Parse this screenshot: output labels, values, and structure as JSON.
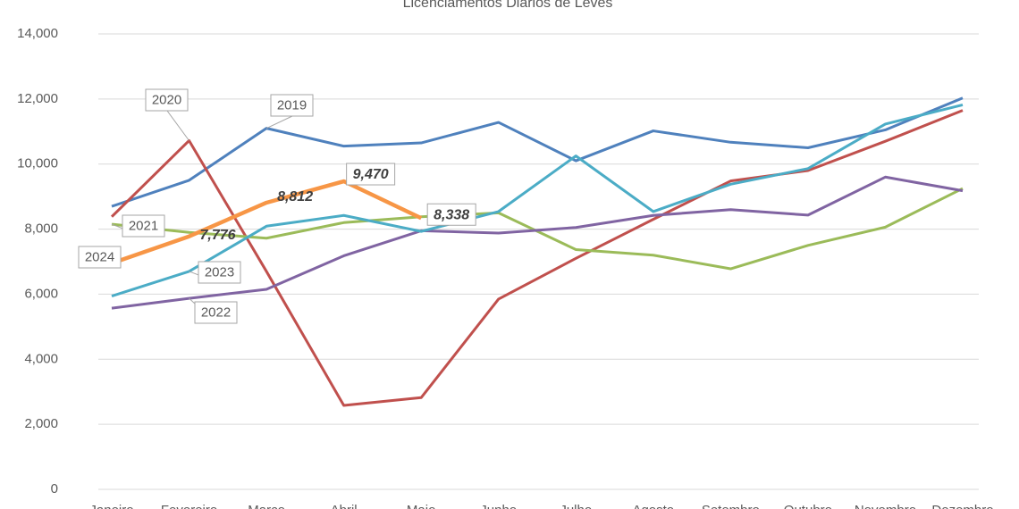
{
  "chart_data": {
    "type": "line",
    "title": "Licenciamentos Diários de Leves",
    "categories": [
      "Janeiro",
      "Fevereiro",
      "Março",
      "Abril",
      "Maio",
      "Junho",
      "Julho",
      "Agosto",
      "Setembro",
      "Outubro",
      "Novembro",
      "Dezembro"
    ],
    "series": [
      {
        "name": "2019",
        "color": "#4f81bd",
        "values": [
          8700,
          9500,
          11100,
          10550,
          10650,
          11280,
          10100,
          11020,
          10670,
          10500,
          11050,
          12030
        ]
      },
      {
        "name": "2020",
        "color": "#c0504d",
        "values": [
          8380,
          10720,
          6700,
          2580,
          2820,
          5850,
          7100,
          8300,
          9480,
          9800,
          10700,
          11650
        ]
      },
      {
        "name": "2021",
        "color": "#9bbb59",
        "values": [
          8150,
          7900,
          7720,
          8200,
          8380,
          8500,
          7370,
          7200,
          6780,
          7500,
          8060,
          9250
        ]
      },
      {
        "name": "2022",
        "color": "#8064a2",
        "values": [
          5570,
          5870,
          6150,
          7180,
          7950,
          7880,
          8050,
          8420,
          8600,
          8430,
          9600,
          9180
        ]
      },
      {
        "name": "2023",
        "color": "#4bacc6",
        "values": [
          5940,
          6700,
          8090,
          8420,
          7930,
          8540,
          10250,
          8540,
          9380,
          9860,
          11230,
          11820
        ]
      },
      {
        "name": "2024",
        "color": "#f79646",
        "values": [
          6950,
          7776,
          8812,
          9470,
          8338,
          null,
          null,
          null,
          null,
          null,
          null,
          null
        ],
        "value_labels": [
          null,
          "7,776",
          "8,812",
          "9,470",
          "8,338",
          null,
          null,
          null,
          null,
          null,
          null,
          null
        ]
      }
    ],
    "ylim": [
      0,
      14000
    ],
    "yticks": [
      0,
      {
        "value": 2000,
        "label": "2,000"
      },
      {
        "value": 4000,
        "label": "4,000"
      },
      {
        "value": 6000,
        "label": "6,000"
      },
      {
        "value": 8000,
        "label": "8,000"
      },
      {
        "value": 10000,
        "label": "10,000"
      },
      {
        "value": 12000,
        "label": "12,000"
      },
      {
        "value": 14000,
        "label": "14,000"
      }
    ],
    "grid": true
  }
}
